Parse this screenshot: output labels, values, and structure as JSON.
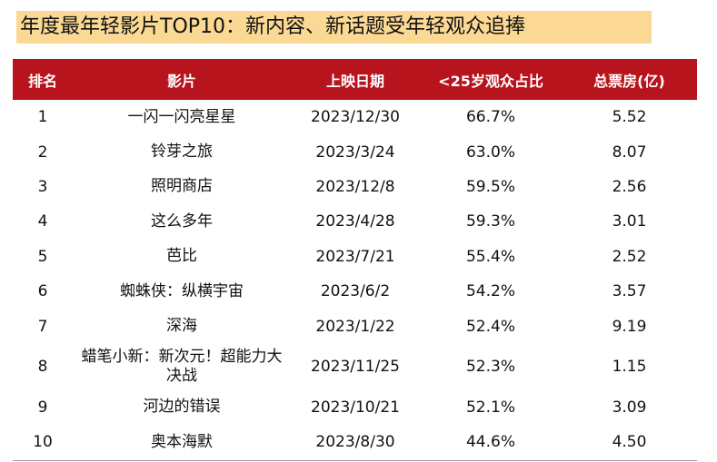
{
  "title": "年度最年轻影片TOP10：新内容、新话题受年轻观众追捧",
  "table": {
    "header": [
      "排名",
      "影片",
      "上映日期",
      "<25岁观众占比",
      "总票房(亿)"
    ],
    "rows": [
      [
        "1",
        "一闪一闪亮星星",
        "2023/12/30",
        "66.7%",
        "5.52"
      ],
      [
        "2",
        "铃芽之旅",
        "2023/3/24",
        "63.0%",
        "8.07"
      ],
      [
        "3",
        "照明商店",
        "2023/12/8",
        "59.5%",
        "2.56"
      ],
      [
        "4",
        "这么多年",
        "2023/4/28",
        "59.3%",
        "3.01"
      ],
      [
        "5",
        "芭比",
        "2023/7/21",
        "55.4%",
        "2.52"
      ],
      [
        "6",
        "蜘蛛侠：纵横宇宙",
        "2023/6/2",
        "54.2%",
        "3.57"
      ],
      [
        "7",
        "深海",
        "2023/1/22",
        "52.4%",
        "9.19"
      ],
      [
        "8",
        "蜡笔小新：新次元！超能力大决战",
        "2023/11/25",
        "52.3%",
        "1.15"
      ],
      [
        "9",
        "河边的错误",
        "2023/10/21",
        "52.1%",
        "3.09"
      ],
      [
        "10",
        "奥本海默",
        "2023/8/30",
        "44.6%",
        "4.50"
      ]
    ]
  }
}
